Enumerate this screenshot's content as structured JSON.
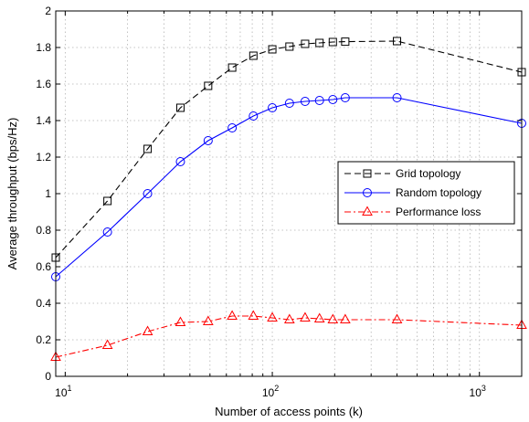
{
  "chart_data": {
    "type": "line",
    "xlabel": "Number of access points (k)",
    "ylabel": "Average throughput (bps/Hz)",
    "xscale": "log",
    "xlim": [
      9,
      1600
    ],
    "ylim": [
      0,
      2
    ],
    "grid": true,
    "legend_position": "center-right",
    "y_ticks": [
      "0",
      "0.2",
      "0.4",
      "0.6",
      "0.8",
      "1",
      "1.2",
      "1.4",
      "1.6",
      "1.8",
      "2"
    ],
    "x_ticks": [
      {
        "base": "10",
        "exp": "1"
      },
      {
        "base": "10",
        "exp": "2"
      },
      {
        "base": "10",
        "exp": "3"
      }
    ],
    "series": [
      {
        "name": "Grid topology",
        "color": "#000000",
        "dash": "dashed",
        "marker": "square",
        "x": [
          9,
          16,
          25,
          36,
          49,
          64,
          81,
          100,
          121,
          144,
          169,
          196,
          225,
          400,
          1600
        ],
        "y": [
          0.65,
          0.96,
          1.245,
          1.47,
          1.59,
          1.69,
          1.755,
          1.79,
          1.805,
          1.82,
          1.825,
          1.83,
          1.832,
          1.835,
          1.665
        ]
      },
      {
        "name": "Random topology",
        "color": "#0000ff",
        "dash": "solid",
        "marker": "circle",
        "x": [
          9,
          16,
          25,
          36,
          49,
          64,
          81,
          100,
          121,
          144,
          169,
          196,
          225,
          400,
          1600
        ],
        "y": [
          0.545,
          0.79,
          1.0,
          1.175,
          1.29,
          1.36,
          1.425,
          1.47,
          1.495,
          1.505,
          1.51,
          1.515,
          1.525,
          1.525,
          1.385
        ]
      },
      {
        "name": "Performance loss",
        "color": "#ff0000",
        "dash": "dash-dot",
        "marker": "triangle",
        "x": [
          9,
          16,
          25,
          36,
          49,
          64,
          81,
          100,
          121,
          144,
          169,
          196,
          225,
          400,
          1600
        ],
        "y": [
          0.105,
          0.17,
          0.245,
          0.295,
          0.3,
          0.33,
          0.33,
          0.32,
          0.31,
          0.32,
          0.315,
          0.31,
          0.31,
          0.31,
          0.28
        ]
      }
    ]
  }
}
